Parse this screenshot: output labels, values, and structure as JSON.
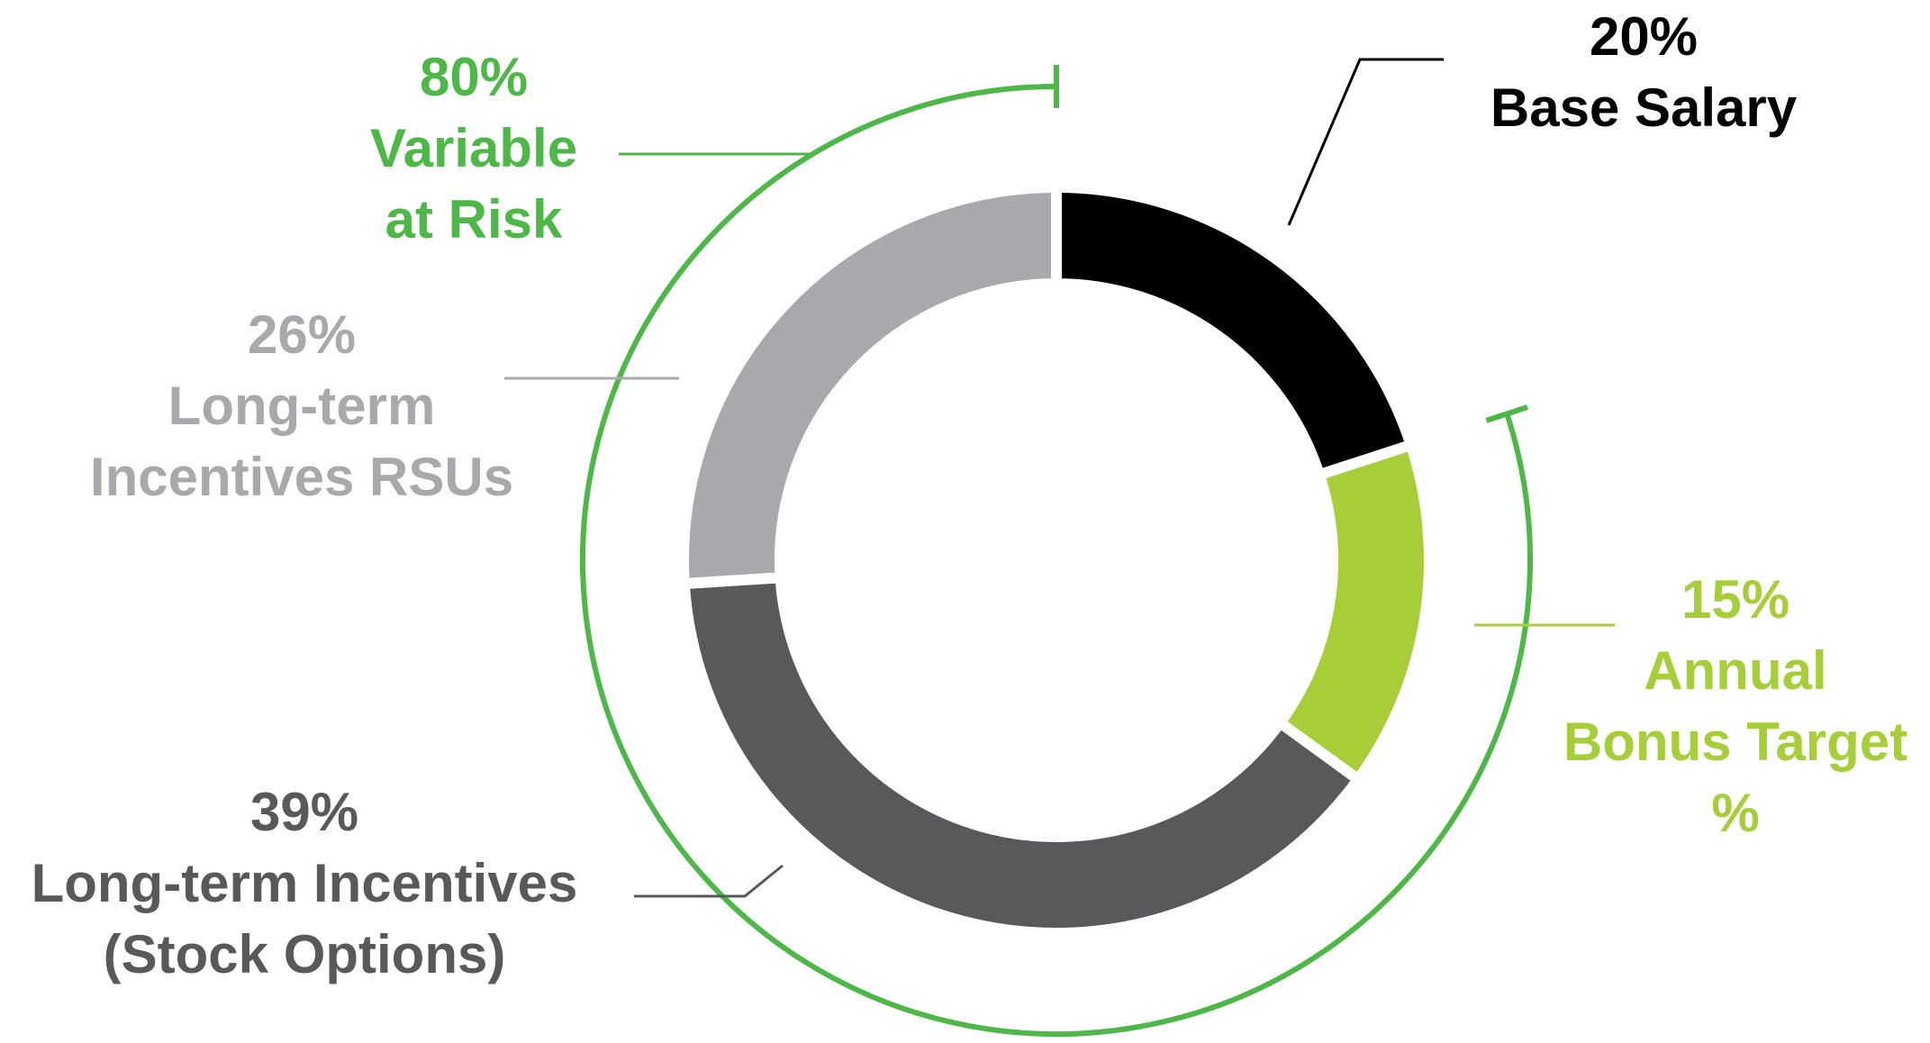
{
  "chart_data": {
    "type": "donut",
    "categories": [
      "Base Salary",
      "Annual\nBonus Target\n%",
      "Long-term Incentives\n(Stock Options)",
      "Long-term\nIncentives RSUs"
    ],
    "values": [
      20,
      15,
      39,
      26
    ],
    "value_labels": [
      "20%",
      "15%",
      "39%",
      "26%"
    ],
    "colors": [
      "#000000",
      "#a6ce39",
      "#58595b",
      "#a7a9ac"
    ],
    "annotation": {
      "value": 80,
      "label": "80%",
      "text": "Variable\nat Risk",
      "color": "#4db848"
    }
  }
}
